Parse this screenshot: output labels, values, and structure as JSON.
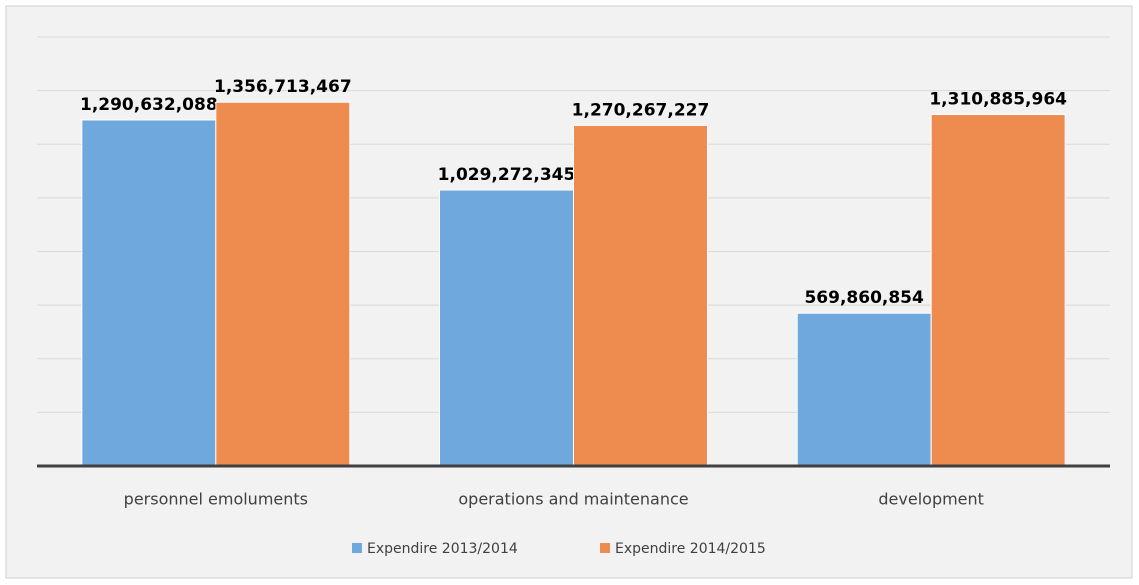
{
  "chart_data": {
    "type": "bar",
    "categories": [
      "personnel emoluments",
      "operations and maintenance",
      "development"
    ],
    "series": [
      {
        "name": "Expendire 2013/2014",
        "color": "#6fa8dc",
        "values": [
          1290632088,
          1029272345,
          569860854
        ],
        "value_labels": [
          "1,290,632,088",
          "1,029,272,345",
          "569,860,854"
        ]
      },
      {
        "name": "Expendire 2014/2015",
        "color": "#ee8c4f",
        "values": [
          1356713467,
          1270267227,
          1310885964
        ],
        "value_labels": [
          "1,356,713,467",
          "1,270,267,227",
          "1,310,885,964"
        ]
      }
    ],
    "ylim": [
      0,
      1600000000
    ],
    "yticks": [
      0,
      200000000,
      400000000,
      600000000,
      800000000,
      1000000000,
      1200000000,
      1400000000,
      1600000000
    ],
    "grid": true,
    "legend": "bottom"
  }
}
